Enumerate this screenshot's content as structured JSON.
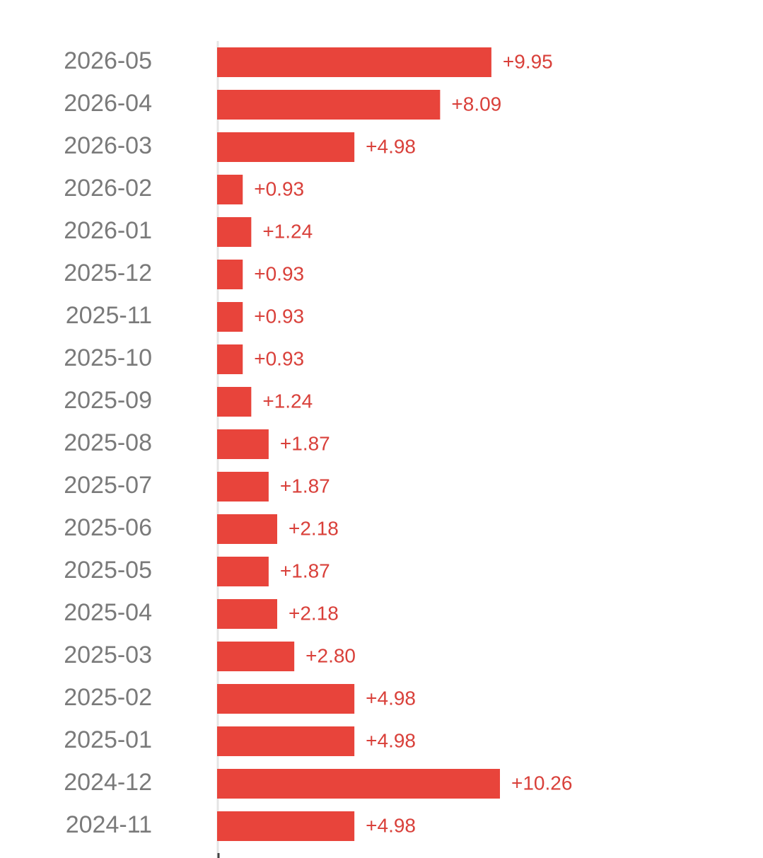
{
  "chart_data": {
    "type": "barh",
    "color": "#e8443b",
    "categories": [
      "2026-05",
      "2026-04",
      "2026-03",
      "2026-02",
      "2026-01",
      "2025-12",
      "2025-11",
      "2025-10",
      "2025-09",
      "2025-08",
      "2025-07",
      "2025-06",
      "2025-05",
      "2025-04",
      "2025-03",
      "2025-02",
      "2025-01",
      "2024-12",
      "2024-11"
    ],
    "values": [
      9.95,
      8.09,
      4.98,
      0.93,
      1.24,
      0.93,
      0.93,
      0.93,
      1.24,
      1.87,
      1.87,
      2.18,
      1.87,
      2.18,
      2.8,
      4.98,
      4.98,
      10.26,
      4.98
    ],
    "value_labels": [
      "+9.95",
      "+8.09",
      "+4.98",
      "+0.93",
      "+1.24",
      "+0.93",
      "+0.93",
      "+0.93",
      "+1.24",
      "+1.87",
      "+1.87",
      "+2.18",
      "+1.87",
      "+2.18",
      "+2.80",
      "+4.98",
      "+4.98",
      "+10.26",
      "+4.98"
    ]
  }
}
